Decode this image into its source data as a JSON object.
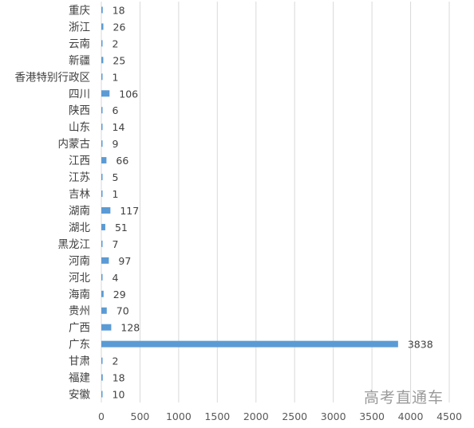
{
  "watermark": "高考直通车",
  "chart_data": {
    "type": "bar",
    "orientation": "horizontal",
    "categories": [
      "重庆",
      "浙江",
      "云南",
      "新疆",
      "香港特别行政区",
      "四川",
      "陕西",
      "山东",
      "内蒙古",
      "江西",
      "江苏",
      "吉林",
      "湖南",
      "湖北",
      "黑龙江",
      "河南",
      "河北",
      "海南",
      "贵州",
      "广西",
      "广东",
      "甘肃",
      "福建",
      "安徽"
    ],
    "values": [
      18,
      26,
      2,
      25,
      1,
      106,
      6,
      14,
      9,
      66,
      5,
      1,
      117,
      51,
      7,
      97,
      4,
      29,
      70,
      128,
      3838,
      2,
      18,
      10
    ],
    "xlim": [
      0,
      4500
    ],
    "xticks": [
      0,
      500,
      1000,
      1500,
      2000,
      2500,
      3000,
      3500,
      4000,
      4500
    ],
    "grid": true,
    "data_labels": true,
    "legend": false,
    "colors": {
      "bar": "#5b9bd5",
      "grid": "#d9d9d9",
      "text": "#404040",
      "axis": "#595959"
    }
  }
}
